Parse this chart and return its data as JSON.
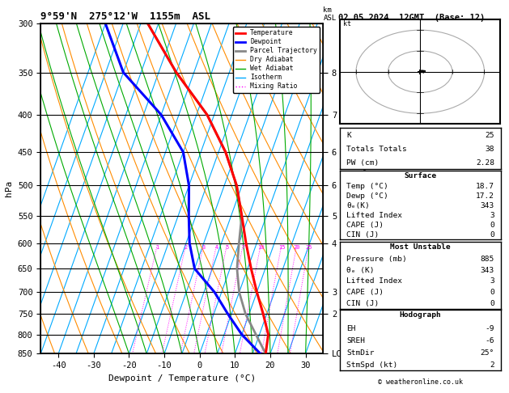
{
  "title_left": "9°59'N  275°12'W  1155m  ASL",
  "title_right": "02.05.2024  12GMT  (Base: 12)",
  "xlabel": "Dewpoint / Temperature (°C)",
  "ylabel_left": "hPa",
  "pressure_levels": [
    300,
    350,
    400,
    450,
    500,
    550,
    600,
    650,
    700,
    750,
    800,
    850
  ],
  "pressure_min": 300,
  "pressure_max": 850,
  "temp_min": -45,
  "temp_max": 35,
  "temp_ticks": [
    -40,
    -30,
    -20,
    -10,
    0,
    10,
    20,
    30
  ],
  "km_ticks_p": [
    350,
    400,
    450,
    500,
    550,
    600,
    700,
    750,
    850
  ],
  "km_ticks_labels": [
    "8",
    "7",
    "6",
    "6",
    "5",
    "4",
    "3",
    "2",
    "LCL"
  ],
  "temperature_profile": {
    "pressure": [
      850,
      800,
      750,
      700,
      650,
      600,
      550,
      500,
      450,
      400,
      350,
      300
    ],
    "temp": [
      18.7,
      17.5,
      14.0,
      10.0,
      6.0,
      2.0,
      -2.0,
      -6.5,
      -13.0,
      -22.0,
      -35.0,
      -48.0
    ]
  },
  "dewpoint_profile": {
    "pressure": [
      850,
      800,
      750,
      700,
      650,
      600,
      550,
      500,
      450,
      400,
      350,
      300
    ],
    "temp": [
      17.2,
      10.0,
      4.0,
      -2.0,
      -10.0,
      -14.0,
      -17.0,
      -20.0,
      -25.0,
      -35.0,
      -50.0,
      -60.0
    ]
  },
  "parcel_profile": {
    "pressure": [
      850,
      800,
      750,
      700,
      650,
      600,
      550,
      500,
      450,
      400,
      350,
      300
    ],
    "temp": [
      18.7,
      14.0,
      9.0,
      5.0,
      2.0,
      0.0,
      -2.0,
      -6.5,
      -13.0,
      -22.0,
      -35.0,
      -48.0
    ]
  },
  "colors": {
    "temperature": "#ff0000",
    "dewpoint": "#0000ff",
    "parcel": "#888888",
    "dry_adiabat": "#ff8c00",
    "wet_adiabat": "#00aa00",
    "isotherm": "#00aaff",
    "mixing_ratio": "#ff00ff",
    "background": "#ffffff",
    "grid": "#000000"
  },
  "legend": [
    {
      "label": "Temperature",
      "color": "#ff0000",
      "lw": 2,
      "ls": "-"
    },
    {
      "label": "Dewpoint",
      "color": "#0000ff",
      "lw": 2,
      "ls": "-"
    },
    {
      "label": "Parcel Trajectory",
      "color": "#888888",
      "lw": 2,
      "ls": "-"
    },
    {
      "label": "Dry Adiabat",
      "color": "#ff8c00",
      "lw": 1,
      "ls": "-"
    },
    {
      "label": "Wet Adiabat",
      "color": "#00aa00",
      "lw": 1,
      "ls": "-"
    },
    {
      "label": "Isotherm",
      "color": "#00aaff",
      "lw": 1,
      "ls": "-"
    },
    {
      "label": "Mixing Ratio",
      "color": "#ff00ff",
      "lw": 1,
      "ls": ":"
    }
  ],
  "stats_k": 25,
  "stats_tt": 38,
  "stats_pw": "2.28",
  "surf_temp": "18.7",
  "surf_dewp": "17.2",
  "surf_thetae": 343,
  "surf_li": 3,
  "surf_cape": 0,
  "surf_cin": 0,
  "mu_pressure": 885,
  "mu_thetae": 343,
  "mu_li": 3,
  "mu_cape": 0,
  "mu_cin": 0,
  "hodo_eh": -9,
  "hodo_sreh": -6,
  "hodo_stmdir": "25°",
  "hodo_stmspd": 2,
  "copyright": "© weatheronline.co.uk",
  "skew": 32
}
